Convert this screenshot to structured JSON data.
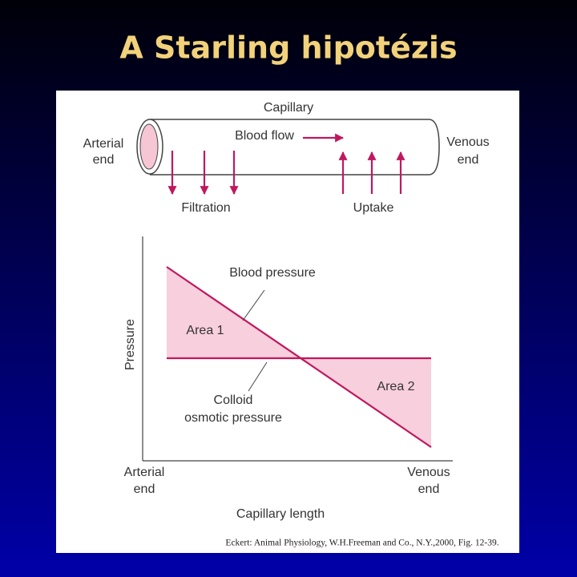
{
  "header": {
    "title": "A Starling hipotézis"
  },
  "capillary": {
    "label": "Capillary",
    "flow": "Blood flow",
    "arterial_end": [
      "Arterial",
      "end"
    ],
    "venous_end": [
      "Venous",
      "end"
    ],
    "filtration": "Filtration",
    "uptake": "Uptake"
  },
  "graph": {
    "y_axis": "Pressure",
    "blood_pressure": "Blood pressure",
    "area_1": "Area 1",
    "area_2": "Area 2",
    "colloid": [
      "Colloid",
      "osmotic pressure"
    ],
    "x_start": [
      "Arterial",
      "end"
    ],
    "x_end": [
      "Venous",
      "end"
    ],
    "x_axis": "Capillary length"
  },
  "citation": "Eckert: Animal Physiology, W.H.Freeman and Co., N.Y.,2000, Fig. 12-39."
}
